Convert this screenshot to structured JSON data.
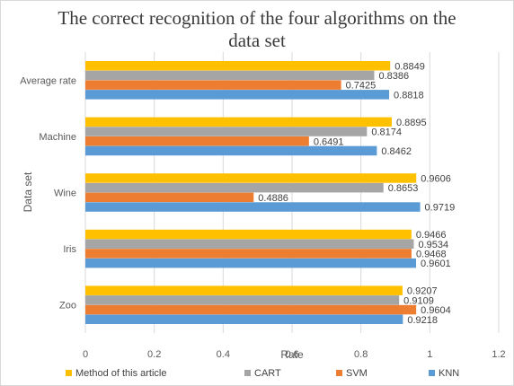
{
  "chart_data": {
    "type": "bar",
    "orientation": "horizontal",
    "title_lines": [
      "The correct recognition of the four algorithms on the",
      "data set"
    ],
    "xlabel": "Rate",
    "ylabel": "Data set",
    "xlim": [
      0,
      1.2
    ],
    "xticks": [
      "0",
      "0.2",
      "0.4",
      "0.6",
      "0.8",
      "1",
      "1.2"
    ],
    "grid": "vertical",
    "legend_position": "bottom",
    "categories": [
      "Average rate",
      "Machine",
      "Wine",
      "Iris",
      "Zoo"
    ],
    "series": [
      {
        "name": "Method of this article",
        "color": "#FFC000",
        "values": [
          0.8849,
          0.8895,
          0.9606,
          0.9466,
          0.9207
        ]
      },
      {
        "name": "CART",
        "color": "#A5A5A5",
        "values": [
          0.8386,
          0.8174,
          0.8653,
          0.9534,
          0.9109
        ]
      },
      {
        "name": "SVM",
        "color": "#ED7D31",
        "values": [
          0.7425,
          0.6491,
          0.4886,
          0.9468,
          0.9604
        ]
      },
      {
        "name": "KNN",
        "color": "#5B9BD5",
        "values": [
          0.8818,
          0.8462,
          0.9719,
          0.9601,
          0.9218
        ]
      }
    ]
  }
}
